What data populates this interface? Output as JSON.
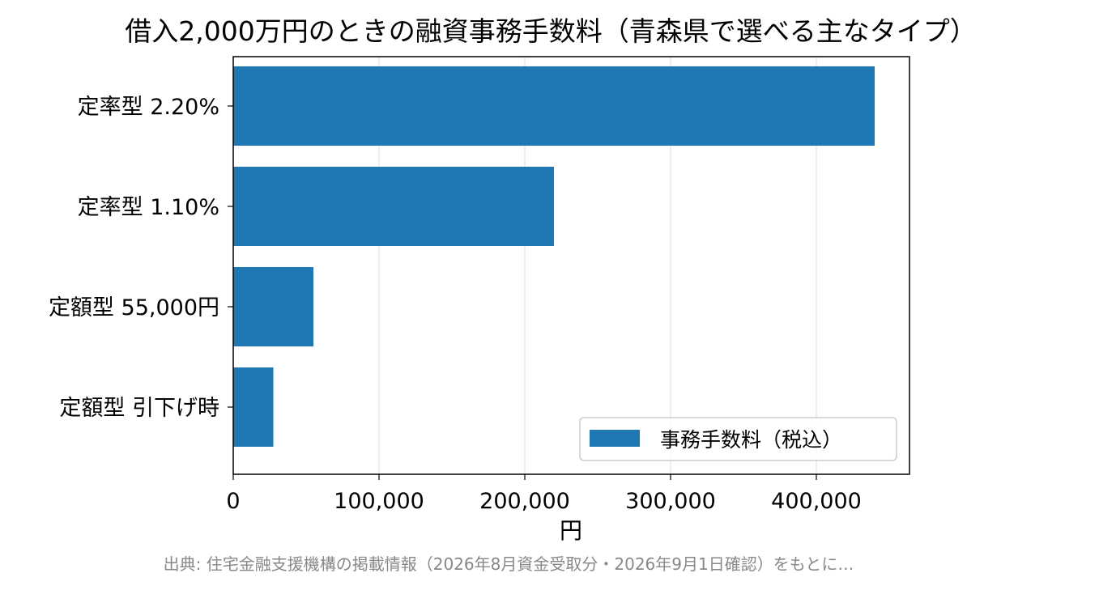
{
  "chart_data": {
    "type": "bar",
    "orientation": "horizontal",
    "title": "借入2,000万円のときの融資事務手数料（青森県で選べる主なタイプ）",
    "xlabel": "円",
    "ylabel": "",
    "categories": [
      "定率型 2.20%",
      "定率型 1.10%",
      "定額型 55,000円",
      "定額型 引下げ時"
    ],
    "series": [
      {
        "name": "事務手数料（税込）",
        "values": [
          440000,
          220000,
          55000,
          27500
        ]
      }
    ],
    "xlim": [
      0,
      460000
    ],
    "xticks": [
      0,
      100000,
      200000,
      300000,
      400000
    ],
    "xtick_labels": [
      "0",
      "100,000",
      "200,000",
      "300,000",
      "400,000"
    ],
    "grid": "x-axis vertical lines",
    "legend_position": "lower-right",
    "bar_color": "#1f77b4"
  },
  "footnote": "出典: 住宅金融支援機構の掲載情報（2026年8月資金受取分・2026年9月1日確認）をもとに…"
}
